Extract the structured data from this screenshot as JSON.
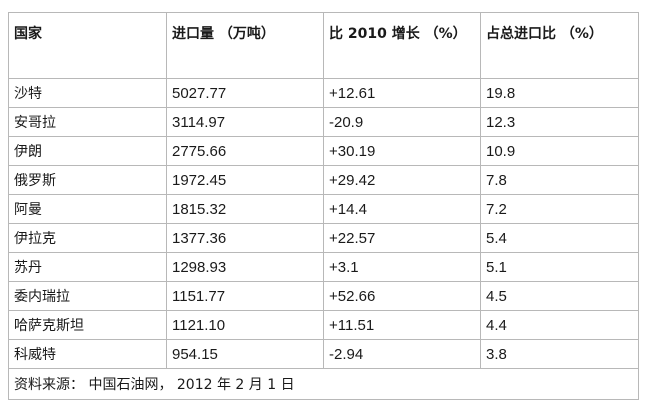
{
  "table": {
    "headers": [
      "国家",
      "进口量 （万吨）",
      "比 2010 增长 （%）",
      "占总进口比 （%）"
    ],
    "rows": [
      [
        "沙特",
        "5027.77",
        "+12.61",
        "19.8"
      ],
      [
        "安哥拉",
        "3114.97",
        "-20.9",
        "12.3"
      ],
      [
        "伊朗",
        "2775.66",
        "+30.19",
        "10.9"
      ],
      [
        "俄罗斯",
        "1972.45",
        "+29.42",
        "7.8"
      ],
      [
        "阿曼",
        "1815.32",
        "+14.4",
        "7.2"
      ],
      [
        "伊拉克",
        "1377.36",
        "+22.57",
        "5.4"
      ],
      [
        "苏丹",
        "1298.93",
        "+3.1",
        "5.1"
      ],
      [
        "委内瑞拉",
        "1151.77",
        "+52.66",
        "4.5"
      ],
      [
        "哈萨克斯坦",
        "1121.10",
        "+11.51",
        "4.4"
      ],
      [
        "科威特",
        "954.15",
        "-2.94",
        "3.8"
      ]
    ],
    "source": "资料来源： 中国石油网， 2012 年 2 月 1 日"
  }
}
